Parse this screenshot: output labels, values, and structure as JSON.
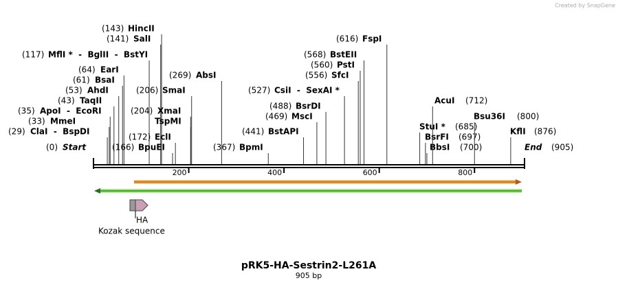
{
  "watermark": "Created by SnapGene",
  "map": {
    "title": "pRK5-HA-Sestrin2-L261A",
    "subtitle": "905 bp",
    "length": 905,
    "ruler_ticks": [
      200,
      400,
      600,
      800
    ],
    "sites": [
      {
        "label": "(0)",
        "name": "Start",
        "position": 0
      },
      {
        "label": "(29)",
        "name": "ClaI  -  BspDI",
        "position": 29
      },
      {
        "label": "(33)",
        "name": "MmeI",
        "position": 33
      },
      {
        "label": "(35)",
        "name": "ApoI  -  EcoRI",
        "position": 35
      },
      {
        "label": "(43)",
        "name": "TaqII",
        "position": 43
      },
      {
        "label": "(53)",
        "name": "AhdI",
        "position": 53
      },
      {
        "label": "(61)",
        "name": "BsaI",
        "position": 61
      },
      {
        "label": "(64)",
        "name": "EarI",
        "position": 64
      },
      {
        "label": "(117)",
        "name": "MflI *  -  BglII  -  BstYI",
        "position": 117
      },
      {
        "label": "(141)",
        "name": "SalI",
        "position": 141
      },
      {
        "label": "(143)",
        "name": "HincII",
        "position": 143
      },
      {
        "label": "(166)",
        "name": "BpuEI",
        "position": 166
      },
      {
        "label": "(172)",
        "name": "EclI",
        "position": 172
      },
      {
        "label": "(204)",
        "name": "XmaI",
        "position": 204
      },
      {
        "name": "TspMI",
        "position": 204
      },
      {
        "label": "(206)",
        "name": "SmaI",
        "position": 206
      },
      {
        "label": "(269)",
        "name": "AbsI",
        "position": 269
      },
      {
        "label": "(367)",
        "name": "BpmI",
        "position": 367
      },
      {
        "label": "(441)",
        "name": "BstAPI",
        "position": 441
      },
      {
        "label": "(469)",
        "name": "MscI",
        "position": 469
      },
      {
        "label": "(488)",
        "name": "BsrDI",
        "position": 488
      },
      {
        "label": "(527)",
        "name": "CsiI  -  SexAI *",
        "position": 527
      },
      {
        "label": "(556)",
        "name": "SfcI",
        "position": 556
      },
      {
        "label": "(560)",
        "name": "PstI",
        "position": 560
      },
      {
        "label": "(568)",
        "name": "BstEII",
        "position": 568
      },
      {
        "label": "(616)",
        "name": "FspI",
        "position": 616
      },
      {
        "label": "(685)",
        "name": "StuI *",
        "position": 685
      },
      {
        "label": "(697)",
        "name": "BsrFI",
        "position": 697
      },
      {
        "label": "(700)",
        "name": "BbsI",
        "position": 700
      },
      {
        "label": "(712)",
        "name": "AcuI",
        "position": 712
      },
      {
        "label": "(800)",
        "name": "Bsu36I",
        "position": 800
      },
      {
        "label": "(876)",
        "name": "KflI",
        "position": 876
      },
      {
        "label": "(905)",
        "name": "End",
        "position": 905
      }
    ],
    "features": [
      {
        "name": "HA"
      },
      {
        "name": "Kozak sequence"
      }
    ]
  }
}
